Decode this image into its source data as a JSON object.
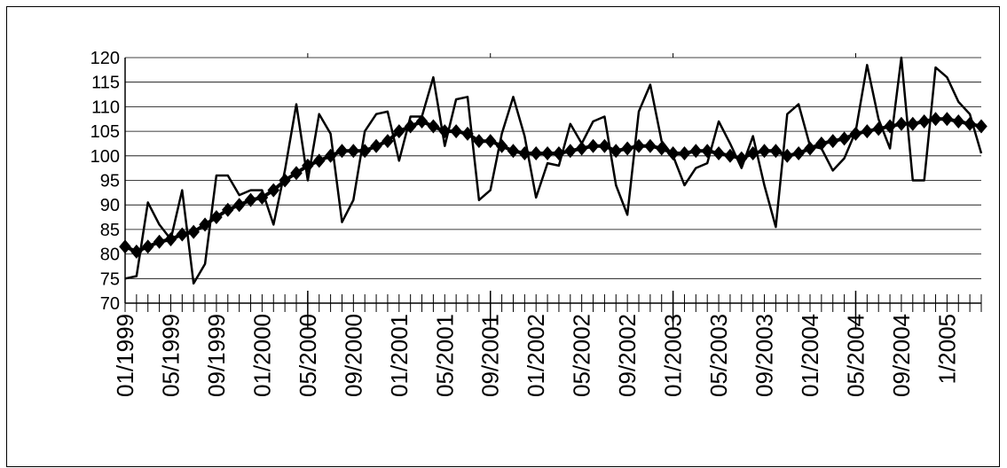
{
  "chart_data": {
    "type": "line",
    "title": "",
    "xlabel": "",
    "ylabel": "",
    "ylim": [
      70,
      120
    ],
    "ytick_step": 5,
    "y_ticks": [
      "70",
      "75",
      "80",
      "85",
      "90",
      "95",
      "100",
      "105",
      "110",
      "115",
      "120"
    ],
    "x_tick_labels": [
      "01/1999",
      "05/1999",
      "09/1999",
      "01/2000",
      "05/2000",
      "09/2000",
      "01/2001",
      "05/2001",
      "09/2001",
      "01/2002",
      "05/2002",
      "09/2002",
      "01/2003",
      "05/2003",
      "09/2003",
      "01/2004",
      "05/2004",
      "09/2004",
      "1/2005"
    ],
    "grid": true,
    "legend": "none",
    "colors": {
      "line": "#000000",
      "marker": "#000000",
      "grid": "#000000"
    },
    "series": [
      {
        "style": "line",
        "values": [
          75,
          75.5,
          90.5,
          86,
          83,
          93,
          74,
          78,
          96,
          96,
          92,
          93,
          93,
          86,
          97,
          110.5,
          95,
          108.5,
          104.5,
          86.5,
          91,
          105,
          108.5,
          109,
          99,
          108,
          108,
          116,
          102,
          111.5,
          112,
          91,
          93,
          104.5,
          112,
          104,
          91.5,
          98.5,
          98,
          106.5,
          102.5,
          107,
          108,
          94,
          88,
          109,
          114.5,
          103,
          100,
          94,
          97.5,
          98.5,
          107,
          102.5,
          97.5,
          104,
          94,
          85.5,
          108.5,
          110.5,
          102,
          101.5,
          97,
          99.5,
          105,
          118.5,
          107.5,
          101.5,
          120,
          95,
          95,
          118,
          116,
          111,
          108.5,
          100.5
        ]
      },
      {
        "style": "markers",
        "values": [
          81.5,
          80.5,
          81.5,
          82.5,
          83,
          84,
          84.5,
          86,
          87.5,
          89,
          90,
          91,
          91.5,
          93,
          95,
          96.5,
          98,
          99,
          100,
          101,
          101,
          101,
          102,
          103,
          105,
          106,
          107,
          106,
          105,
          105,
          104.5,
          103,
          103,
          102,
          101,
          100.5,
          100.5,
          100.5,
          100.5,
          101,
          101.5,
          102,
          102,
          101,
          101.5,
          102,
          102,
          101.5,
          100.5,
          100.5,
          101,
          101,
          100.5,
          100,
          99.5,
          100.5,
          101,
          101,
          100,
          100.5,
          101.5,
          102.5,
          103,
          103.5,
          104.5,
          105,
          105.5,
          106,
          106.5,
          106.5,
          107,
          107.5,
          107.5,
          107,
          106.5,
          106
        ]
      }
    ]
  }
}
